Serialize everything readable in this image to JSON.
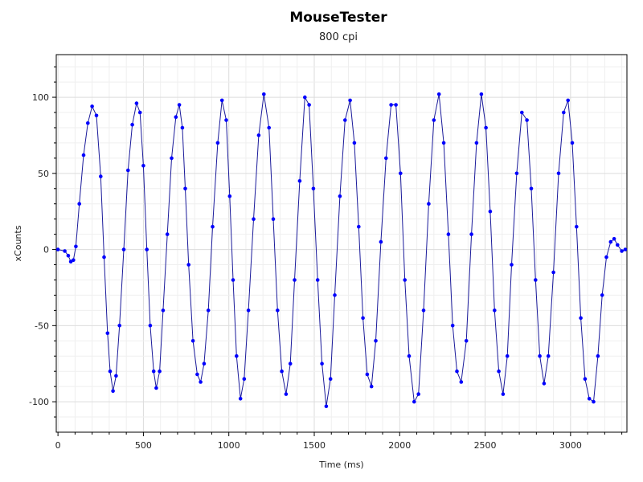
{
  "chart_data": {
    "type": "scatter",
    "title": "MouseTester",
    "subtitle": "800 cpi",
    "xlabel": "Time (ms)",
    "ylabel": "xCounts",
    "xlim": [
      -10,
      3330
    ],
    "ylim": [
      -120,
      128
    ],
    "xticks": [
      0,
      500,
      1000,
      1500,
      2000,
      2500,
      3000
    ],
    "yticks": [
      -100,
      -50,
      0,
      50,
      100
    ],
    "grid": true,
    "colors": {
      "series": "#0000ff",
      "line": "#1a1a9a"
    },
    "series": [
      {
        "points": [
          [
            0,
            0
          ],
          [
            40,
            -1
          ],
          [
            60,
            -4
          ],
          [
            75,
            -8
          ],
          [
            90,
            -7
          ],
          [
            105,
            2
          ],
          [
            125,
            30
          ],
          [
            150,
            62
          ],
          [
            175,
            83
          ],
          [
            200,
            94
          ],
          [
            225,
            88
          ],
          [
            250,
            48
          ],
          [
            270,
            -5
          ],
          [
            290,
            -55
          ],
          [
            305,
            -80
          ],
          [
            322,
            -93
          ],
          [
            340,
            -83
          ],
          [
            360,
            -50
          ],
          [
            385,
            0
          ],
          [
            410,
            52
          ],
          [
            435,
            82
          ],
          [
            460,
            96
          ],
          [
            480,
            90
          ],
          [
            500,
            55
          ],
          [
            520,
            0
          ],
          [
            540,
            -50
          ],
          [
            560,
            -80
          ],
          [
            575,
            -91
          ],
          [
            595,
            -80
          ],
          [
            615,
            -40
          ],
          [
            640,
            10
          ],
          [
            665,
            60
          ],
          [
            690,
            87
          ],
          [
            710,
            95
          ],
          [
            728,
            80
          ],
          [
            745,
            40
          ],
          [
            765,
            -10
          ],
          [
            790,
            -60
          ],
          [
            815,
            -82
          ],
          [
            835,
            -87
          ],
          [
            855,
            -75
          ],
          [
            880,
            -40
          ],
          [
            905,
            15
          ],
          [
            935,
            70
          ],
          [
            960,
            98
          ],
          [
            985,
            85
          ],
          [
            1005,
            35
          ],
          [
            1025,
            -20
          ],
          [
            1045,
            -70
          ],
          [
            1068,
            -98
          ],
          [
            1090,
            -85
          ],
          [
            1115,
            -40
          ],
          [
            1145,
            20
          ],
          [
            1175,
            75
          ],
          [
            1205,
            102
          ],
          [
            1235,
            80
          ],
          [
            1260,
            20
          ],
          [
            1285,
            -40
          ],
          [
            1310,
            -80
          ],
          [
            1335,
            -95
          ],
          [
            1360,
            -75
          ],
          [
            1385,
            -20
          ],
          [
            1415,
            45
          ],
          [
            1445,
            100
          ],
          [
            1470,
            95
          ],
          [
            1495,
            40
          ],
          [
            1520,
            -20
          ],
          [
            1545,
            -75
          ],
          [
            1570,
            -103
          ],
          [
            1595,
            -85
          ],
          [
            1620,
            -30
          ],
          [
            1650,
            35
          ],
          [
            1680,
            85
          ],
          [
            1710,
            98
          ],
          [
            1735,
            70
          ],
          [
            1760,
            15
          ],
          [
            1785,
            -45
          ],
          [
            1810,
            -82
          ],
          [
            1835,
            -90
          ],
          [
            1860,
            -60
          ],
          [
            1890,
            5
          ],
          [
            1920,
            60
          ],
          [
            1950,
            95
          ],
          [
            1978,
            95
          ],
          [
            2005,
            50
          ],
          [
            2030,
            -20
          ],
          [
            2055,
            -70
          ],
          [
            2085,
            -100
          ],
          [
            2110,
            -95
          ],
          [
            2140,
            -40
          ],
          [
            2170,
            30
          ],
          [
            2200,
            85
          ],
          [
            2230,
            102
          ],
          [
            2258,
            70
          ],
          [
            2285,
            10
          ],
          [
            2310,
            -50
          ],
          [
            2335,
            -80
          ],
          [
            2360,
            -87
          ],
          [
            2390,
            -60
          ],
          [
            2420,
            10
          ],
          [
            2450,
            70
          ],
          [
            2478,
            102
          ],
          [
            2505,
            80
          ],
          [
            2530,
            25
          ],
          [
            2555,
            -40
          ],
          [
            2580,
            -80
          ],
          [
            2605,
            -95
          ],
          [
            2630,
            -70
          ],
          [
            2655,
            -10
          ],
          [
            2685,
            50
          ],
          [
            2715,
            90
          ],
          [
            2745,
            85
          ],
          [
            2770,
            40
          ],
          [
            2795,
            -20
          ],
          [
            2820,
            -70
          ],
          [
            2845,
            -88
          ],
          [
            2870,
            -70
          ],
          [
            2900,
            -15
          ],
          [
            2930,
            50
          ],
          [
            2960,
            90
          ],
          [
            2985,
            98
          ],
          [
            3010,
            70
          ],
          [
            3035,
            15
          ],
          [
            3060,
            -45
          ],
          [
            3085,
            -85
          ],
          [
            3110,
            -98
          ],
          [
            3135,
            -100
          ],
          [
            3160,
            -70
          ],
          [
            3185,
            -30
          ],
          [
            3210,
            -5
          ],
          [
            3235,
            5
          ],
          [
            3255,
            7
          ],
          [
            3275,
            3
          ],
          [
            3300,
            -1
          ],
          [
            3320,
            0
          ]
        ]
      }
    ]
  }
}
